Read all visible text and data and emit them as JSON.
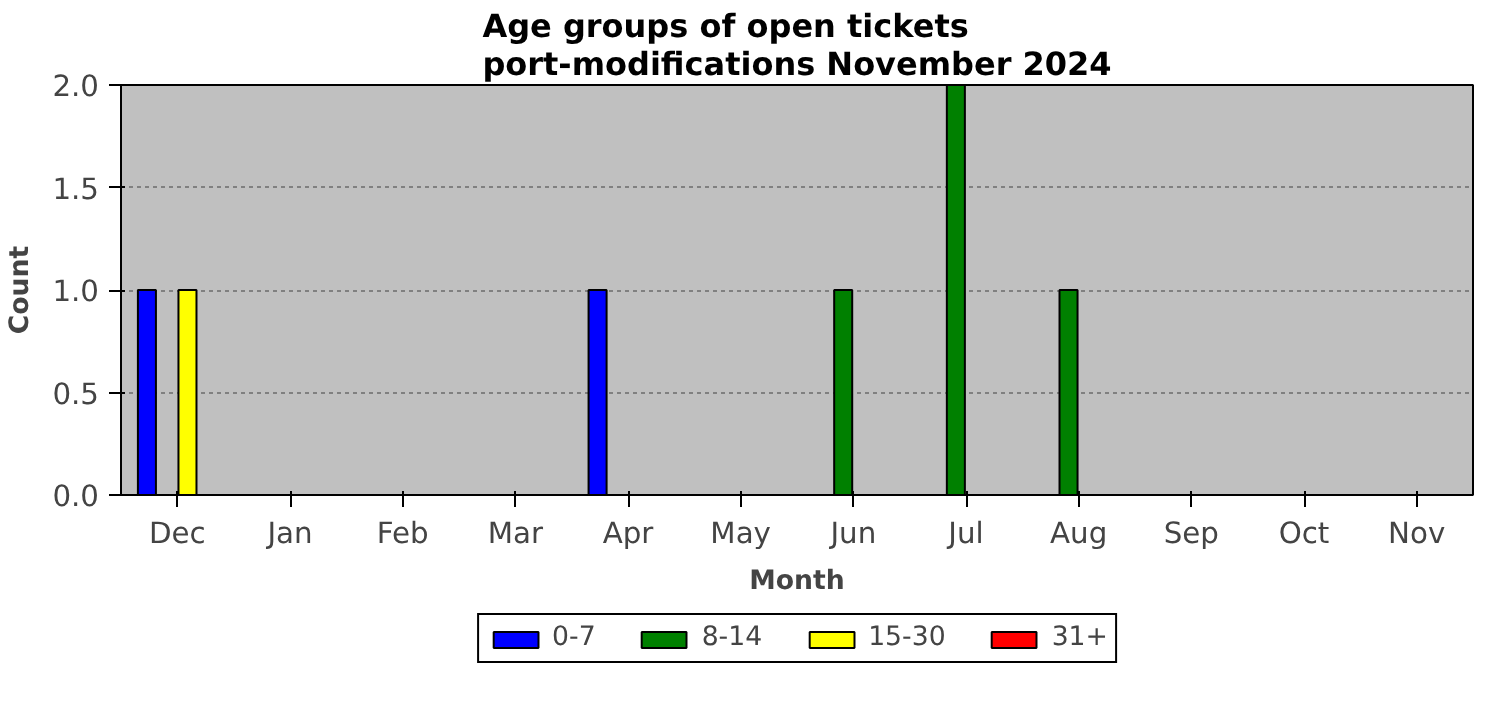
{
  "chart_data": {
    "type": "bar",
    "title": "Age groups of open tickets\nport-modifications November 2024",
    "xlabel": "Month",
    "ylabel": "Count",
    "categories": [
      "Dec",
      "Jan",
      "Feb",
      "Mar",
      "Apr",
      "May",
      "Jun",
      "Jul",
      "Aug",
      "Sep",
      "Oct",
      "Nov"
    ],
    "series": [
      {
        "name": "0-7",
        "color": "#0000ff",
        "values": [
          1,
          0,
          0,
          0,
          1,
          0,
          0,
          0,
          0,
          0,
          0,
          0
        ]
      },
      {
        "name": "8-14",
        "color": "#008000",
        "values": [
          0,
          0,
          0,
          0,
          0,
          0,
          1,
          2,
          1,
          0,
          0,
          0
        ]
      },
      {
        "name": "15-30",
        "color": "#ffff00",
        "values": [
          1,
          0,
          0,
          0,
          0,
          0,
          0,
          0,
          0,
          0,
          0,
          0
        ]
      },
      {
        "name": "31+",
        "color": "#ff0000",
        "values": [
          0,
          0,
          0,
          0,
          0,
          0,
          0,
          0,
          0,
          0,
          0,
          0
        ]
      }
    ],
    "ylim": [
      0,
      2
    ],
    "yticks": [
      {
        "value": 0,
        "label": "0.0"
      },
      {
        "value": 0.5,
        "label": "0.5"
      },
      {
        "value": 1,
        "label": "1.0"
      },
      {
        "value": 1.5,
        "label": "1.5"
      },
      {
        "value": 2,
        "label": "2.0"
      }
    ],
    "grid": "y",
    "legend": "bottom"
  }
}
